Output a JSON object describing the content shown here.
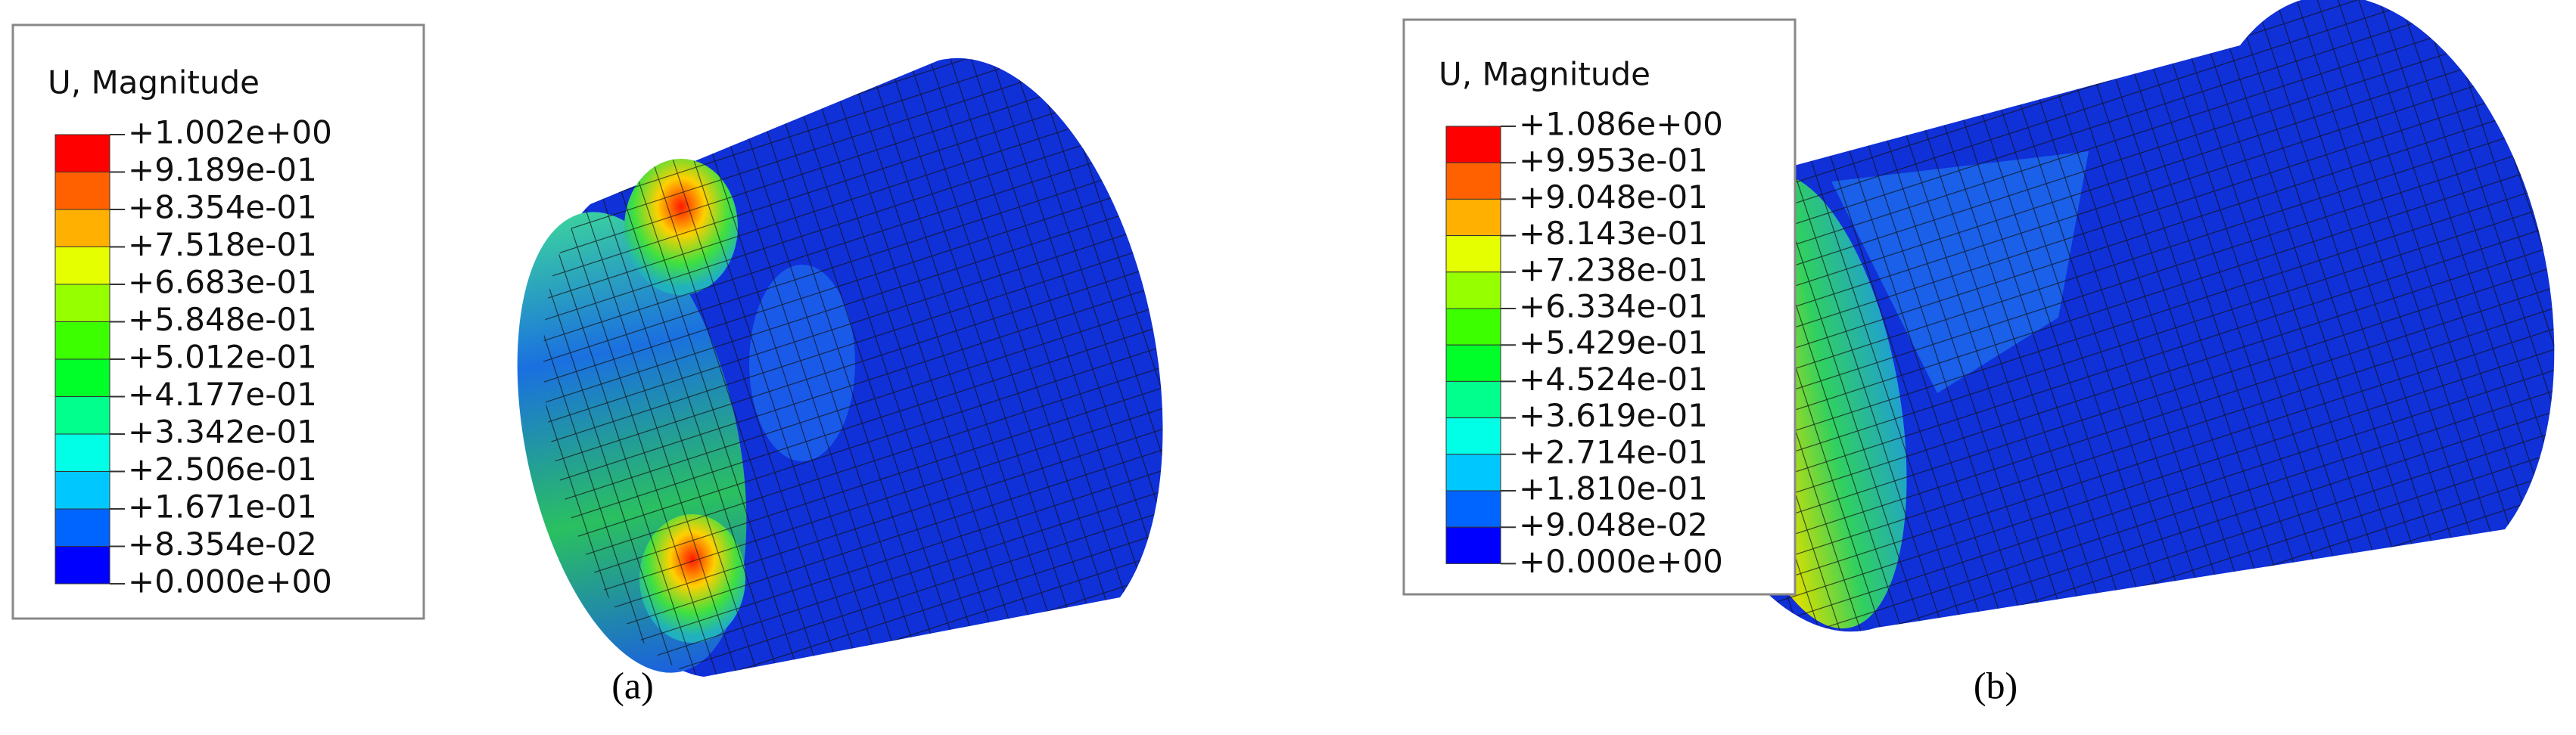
{
  "panels": [
    {
      "legend": {
        "title": "U, Magnitude",
        "labels": [
          "+1.002e+00",
          "+9.189e-01",
          "+8.354e-01",
          "+7.518e-01",
          "+6.683e-01",
          "+5.848e-01",
          "+5.012e-01",
          "+4.177e-01",
          "+3.342e-01",
          "+2.506e-01",
          "+1.671e-01",
          "+8.354e-02",
          "+0.000e+00"
        ]
      },
      "caption": "(a)"
    },
    {
      "legend": {
        "title": "U, Magnitude",
        "labels": [
          "+1.086e+00",
          "+9.953e-01",
          "+9.048e-01",
          "+8.143e-01",
          "+7.238e-01",
          "+6.334e-01",
          "+5.429e-01",
          "+4.524e-01",
          "+3.619e-01",
          "+2.714e-01",
          "+1.810e-01",
          "+9.048e-02",
          "+0.000e+00"
        ]
      },
      "caption": "(b)"
    }
  ]
}
